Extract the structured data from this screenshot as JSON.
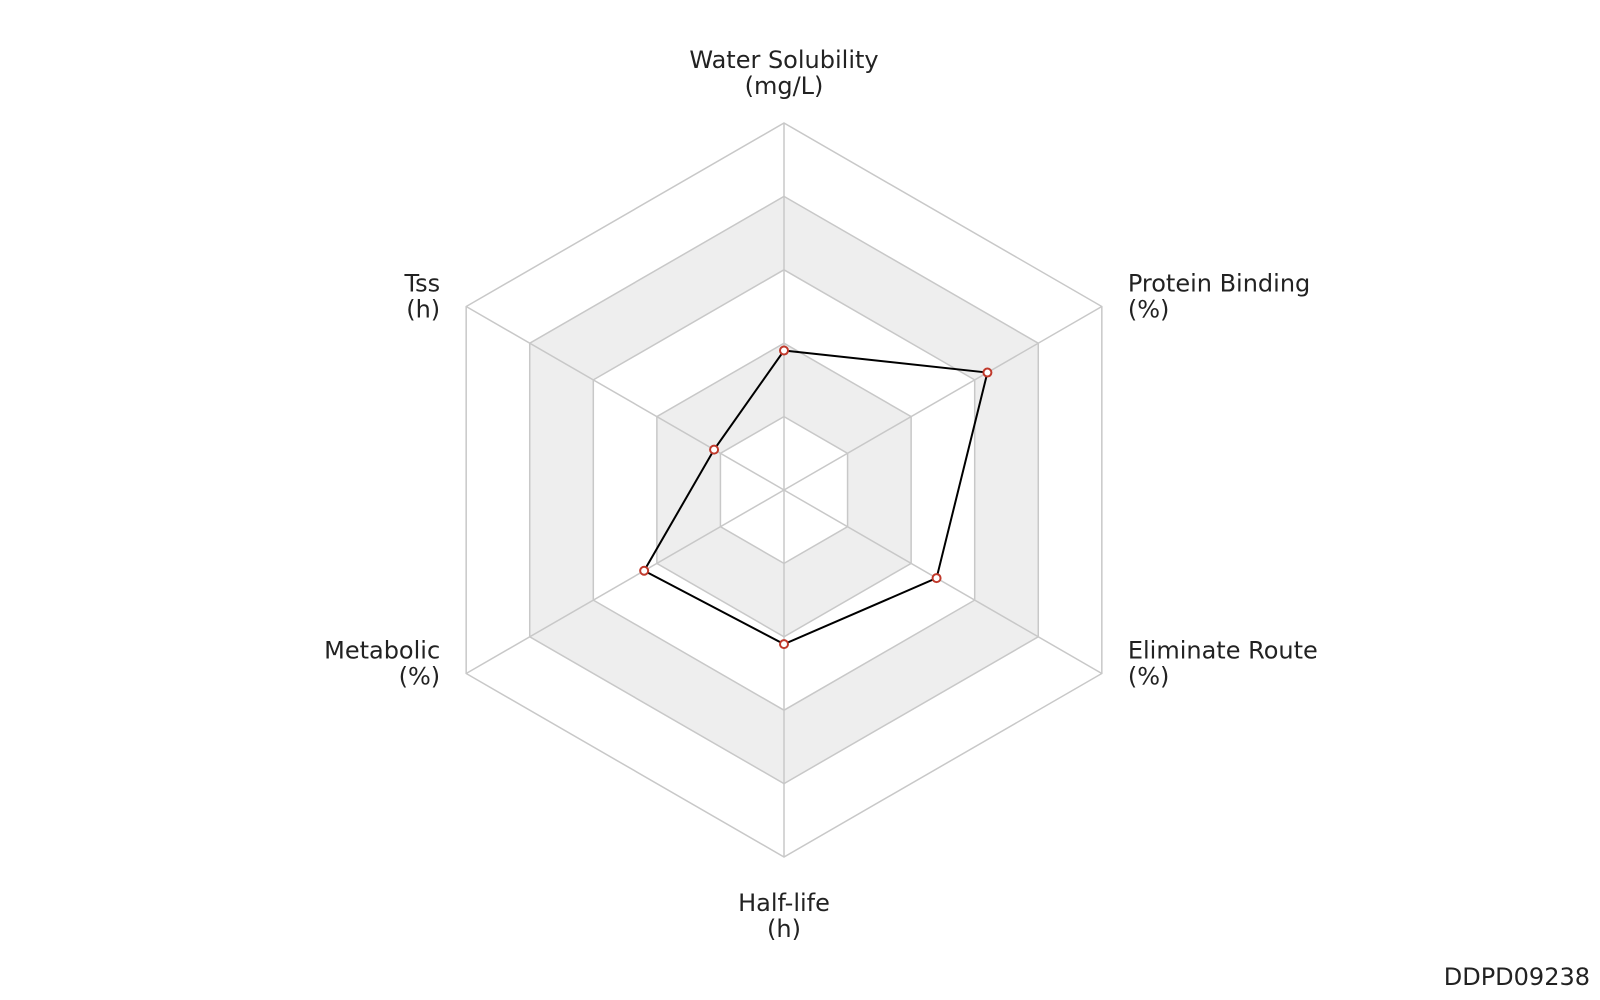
{
  "chart_data": {
    "type": "radar",
    "axes": [
      {
        "name": "Water Solubility",
        "unit": "(mg/L)"
      },
      {
        "name": "Protein Binding",
        "unit": "(%)"
      },
      {
        "name": "Eliminate Route",
        "unit": "(%)"
      },
      {
        "name": "Half-life",
        "unit": "(h)"
      },
      {
        "name": "Metabolic",
        "unit": "(%)"
      },
      {
        "name": "Tss",
        "unit": "(h)"
      }
    ],
    "values": [
      1.9,
      3.2,
      2.4,
      2.1,
      2.2,
      1.1
    ],
    "rlim": [
      0,
      5
    ],
    "rticks": [
      1,
      2,
      3,
      4,
      5
    ],
    "line_color": "#000000",
    "marker_color": "#c0392b",
    "band_colors": [
      "#ffffff",
      "#eeeeee"
    ],
    "watermark": "DDPD09238"
  }
}
